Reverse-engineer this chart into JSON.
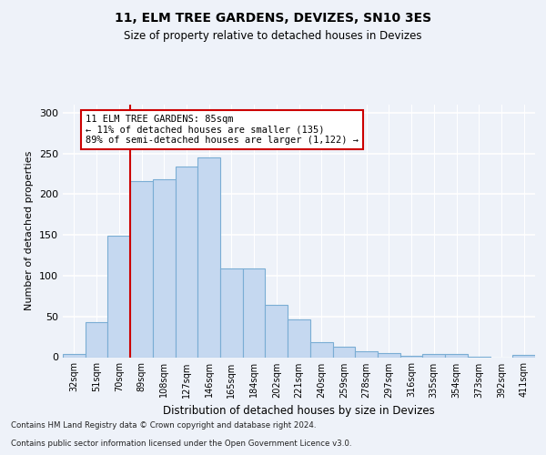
{
  "title": "11, ELM TREE GARDENS, DEVIZES, SN10 3ES",
  "subtitle": "Size of property relative to detached houses in Devizes",
  "xlabel": "Distribution of detached houses by size in Devizes",
  "ylabel": "Number of detached properties",
  "categories": [
    "32sqm",
    "51sqm",
    "70sqm",
    "89sqm",
    "108sqm",
    "127sqm",
    "146sqm",
    "165sqm",
    "184sqm",
    "202sqm",
    "221sqm",
    "240sqm",
    "259sqm",
    "278sqm",
    "297sqm",
    "316sqm",
    "335sqm",
    "354sqm",
    "373sqm",
    "392sqm",
    "411sqm"
  ],
  "values": [
    4,
    43,
    149,
    216,
    218,
    234,
    245,
    109,
    109,
    64,
    46,
    18,
    13,
    7,
    5,
    2,
    4,
    4,
    1,
    0,
    3
  ],
  "bar_color": "#c5d8f0",
  "bar_edge_color": "#7aadd4",
  "vline_color": "#cc0000",
  "vline_x": 2.5,
  "annotation_text": "11 ELM TREE GARDENS: 85sqm\n← 11% of detached houses are smaller (135)\n89% of semi-detached houses are larger (1,122) →",
  "annotation_box_color": "#ffffff",
  "annotation_box_edge": "#cc0000",
  "ylim": [
    0,
    310
  ],
  "yticks": [
    0,
    50,
    100,
    150,
    200,
    250,
    300
  ],
  "footer_line1": "Contains HM Land Registry data © Crown copyright and database right 2024.",
  "footer_line2": "Contains public sector information licensed under the Open Government Licence v3.0.",
  "bg_color": "#eef2f9",
  "plot_bg_color": "#eef2f9",
  "title_fontsize": 10,
  "subtitle_fontsize": 8.5
}
